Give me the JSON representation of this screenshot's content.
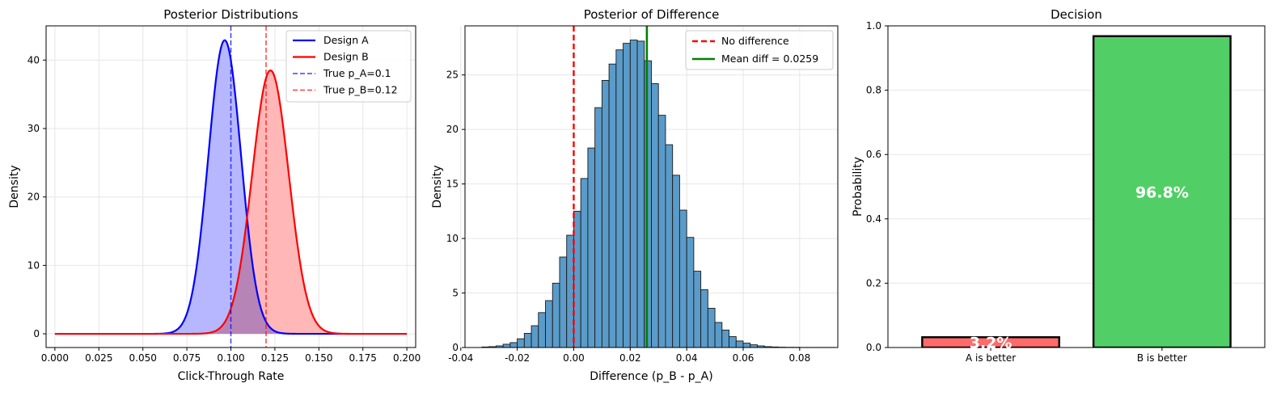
{
  "colors": {
    "design_a": "#0000ff",
    "design_b": "#ff0000",
    "fill_a": "#b3b3ff",
    "fill_b": "#ffb3b3",
    "hist": "#5a9bc9",
    "mean_line": "#008000",
    "bar_a": "#ff6b6b",
    "bar_b": "#51cf66",
    "grid": "#e6e6e6"
  },
  "chart_data": [
    {
      "type": "line",
      "title": "Posterior Distributions",
      "xlabel": "Click-Through Rate",
      "ylabel": "Density",
      "xlim": [
        -0.005,
        0.205
      ],
      "ylim": [
        -2,
        45
      ],
      "xticks": [
        0.0,
        0.025,
        0.05,
        0.075,
        0.1,
        0.125,
        0.15,
        0.175,
        0.2
      ],
      "xtick_labels": [
        "0.000",
        "0.025",
        "0.050",
        "0.075",
        "0.100",
        "0.125",
        "0.150",
        "0.175",
        "0.200"
      ],
      "yticks": [
        0,
        10,
        20,
        30,
        40
      ],
      "ytick_labels": [
        "0",
        "10",
        "20",
        "30",
        "40"
      ],
      "grid": true,
      "legend_position": "top-right",
      "series": [
        {
          "name": "Design A",
          "distribution": "normal",
          "mean": 0.0965,
          "sd": 0.0093,
          "peak": 42.9,
          "color": "#0000ff"
        },
        {
          "name": "Design B",
          "distribution": "normal",
          "mean": 0.1225,
          "sd": 0.0104,
          "peak": 38.5,
          "color": "#ff0000"
        }
      ],
      "vlines": [
        {
          "name": "True p_A=0.1",
          "x": 0.1,
          "color": "#0000ff",
          "style": "dashed"
        },
        {
          "name": "True p_B=0.12",
          "x": 0.12,
          "color": "#ff0000",
          "style": "dashed"
        }
      ],
      "legend": [
        "Design A",
        "Design B",
        "True p_A=0.1",
        "True p_B=0.12"
      ]
    },
    {
      "type": "histogram",
      "title": "Posterior of Difference",
      "xlabel": "Difference (p_B - p_A)",
      "ylabel": "Density",
      "xlim": [
        -0.0385,
        0.0935
      ],
      "ylim": [
        0,
        29.5
      ],
      "xticks": [
        -0.04,
        -0.02,
        0.0,
        0.02,
        0.04,
        0.06,
        0.08
      ],
      "xtick_labels": [
        "-0.04",
        "-0.02",
        "0.00",
        "0.02",
        "0.04",
        "0.06",
        "0.08"
      ],
      "yticks": [
        0,
        5,
        10,
        15,
        20,
        25
      ],
      "ytick_labels": [
        "0",
        "5",
        "10",
        "15",
        "20",
        "25"
      ],
      "grid": true,
      "legend_position": "top-right",
      "bin_start": -0.0325,
      "bin_width": 0.0025,
      "densities": [
        0.05,
        0.08,
        0.15,
        0.3,
        0.45,
        0.8,
        1.3,
        2.0,
        3.2,
        4.3,
        5.9,
        8.3,
        10.3,
        12.5,
        15.5,
        18.3,
        22.0,
        24.5,
        26.0,
        27.3,
        27.9,
        28.2,
        28.1,
        26.3,
        24.2,
        21.3,
        18.6,
        15.8,
        12.6,
        10.1,
        7.0,
        5.3,
        3.6,
        2.3,
        1.6,
        1.0,
        0.6,
        0.4,
        0.25,
        0.15,
        0.08,
        0.05,
        0.03,
        0.02,
        0.02,
        0.01,
        0.01,
        0.01,
        0.01,
        0.01
      ],
      "vlines": [
        {
          "name": "No difference",
          "x": 0.0,
          "color": "#ff0000",
          "style": "dashed"
        },
        {
          "name": "Mean diff = 0.0259",
          "x": 0.0259,
          "color": "#008000",
          "style": "solid"
        }
      ],
      "legend": [
        "No difference",
        "Mean diff = 0.0259"
      ]
    },
    {
      "type": "bar",
      "title": "Decision",
      "xlabel": "",
      "ylabel": "Probability",
      "ylim": [
        0,
        1.0
      ],
      "yticks": [
        0.0,
        0.2,
        0.4,
        0.6,
        0.8,
        1.0
      ],
      "ytick_labels": [
        "0.0",
        "0.2",
        "0.4",
        "0.6",
        "0.8",
        "1.0"
      ],
      "grid": true,
      "categories": [
        "A is better",
        "B is better"
      ],
      "values": [
        0.032,
        0.968
      ],
      "data_labels": [
        "3.2%",
        "96.8%"
      ],
      "colors": [
        "#ff6b6b",
        "#51cf66"
      ]
    }
  ]
}
